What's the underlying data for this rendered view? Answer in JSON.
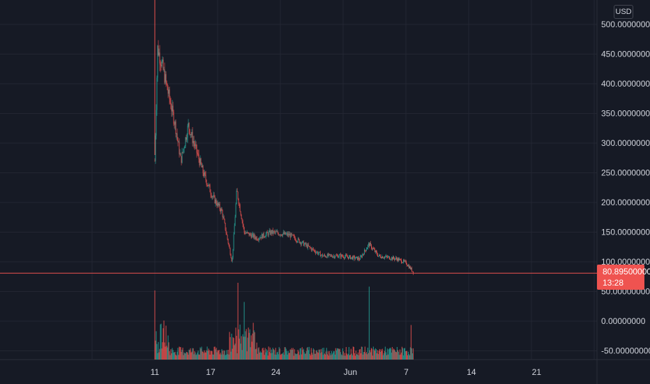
{
  "currency": "USD",
  "last_price": {
    "value_label": "80.89500000",
    "countdown": "13:28",
    "value": 80.895,
    "color": "#ef5350"
  },
  "colors": {
    "background": "#161a25",
    "grid": "#232632",
    "up": "#26a69a",
    "down": "#ef5350",
    "text": "#d1d4dc"
  },
  "chart_data": {
    "type": "candlestick",
    "price_axis": {
      "min": -65,
      "max": 510,
      "tick_values": [
        -50,
        0,
        50,
        100,
        150,
        200,
        250,
        300,
        350,
        400,
        450,
        500
      ],
      "tick_labels": [
        "-50.00000000",
        "0.00000000",
        "50.00000000",
        "100.00000000",
        "150.00000000",
        "200.00000000",
        "250.00000000",
        "300.00000000",
        "350.00000000",
        "400.00000000",
        "450.00000000",
        "500.00000000"
      ]
    },
    "time_axis": {
      "start_day": 8,
      "end_day": 50,
      "tick_days": [
        11,
        17,
        24,
        32,
        38,
        45,
        52
      ],
      "tick_labels": [
        "11",
        "17",
        "24",
        "Jun",
        "7",
        "14",
        "21"
      ]
    },
    "price_path": [
      {
        "day": 11.0,
        "price": 270
      },
      {
        "day": 11.3,
        "price": 460
      },
      {
        "day": 11.8,
        "price": 430
      },
      {
        "day": 12.5,
        "price": 380
      },
      {
        "day": 13.2,
        "price": 330
      },
      {
        "day": 13.8,
        "price": 270
      },
      {
        "day": 14.6,
        "price": 330
      },
      {
        "day": 15.2,
        "price": 300
      },
      {
        "day": 16.2,
        "price": 250
      },
      {
        "day": 17.2,
        "price": 210
      },
      {
        "day": 18.2,
        "price": 185
      },
      {
        "day": 19.3,
        "price": 100
      },
      {
        "day": 19.8,
        "price": 220
      },
      {
        "day": 20.6,
        "price": 150
      },
      {
        "day": 22.0,
        "price": 140
      },
      {
        "day": 23.5,
        "price": 150
      },
      {
        "day": 25.5,
        "price": 145
      },
      {
        "day": 27.5,
        "price": 125
      },
      {
        "day": 29.0,
        "price": 110
      },
      {
        "day": 31.0,
        "price": 110
      },
      {
        "day": 33.0,
        "price": 105
      },
      {
        "day": 34.0,
        "price": 130
      },
      {
        "day": 35.0,
        "price": 110
      },
      {
        "day": 37.0,
        "price": 105
      },
      {
        "day": 38.0,
        "price": 98
      },
      {
        "day": 38.8,
        "price": 82
      }
    ],
    "volume_spikes": [
      {
        "day": 11.0,
        "level": 0.9
      },
      {
        "day": 19.9,
        "level": 1.0
      },
      {
        "day": 20.6,
        "level": 0.75
      },
      {
        "day": 34.0,
        "level": 0.95
      },
      {
        "day": 38.5,
        "level": 0.45
      }
    ]
  }
}
